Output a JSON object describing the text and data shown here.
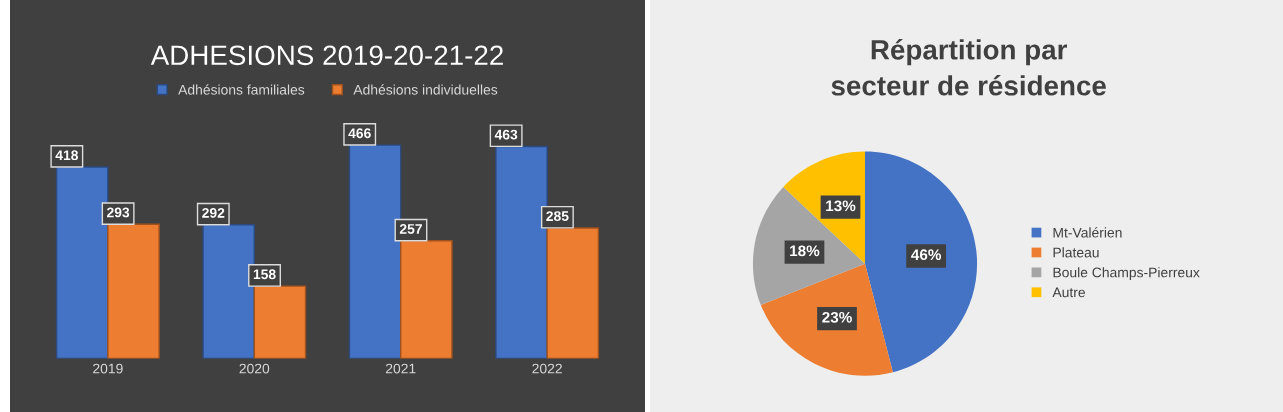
{
  "chart_data": [
    {
      "type": "bar",
      "title": "ADHESIONS 2019-20-21-22",
      "categories": [
        "2019",
        "2020",
        "2021",
        "2022"
      ],
      "series": [
        {
          "name": "Adhésions familiales",
          "color": "#4472c4",
          "values": [
            418,
            292,
            466,
            463
          ]
        },
        {
          "name": "Adhésions individuelles",
          "color": "#ed7d31",
          "values": [
            293,
            158,
            257,
            285
          ]
        }
      ],
      "data_labels": true,
      "legend": "top",
      "grid": false
    },
    {
      "type": "pie",
      "title": "Répartition par secteur de résidence",
      "categories": [
        "Mt-Valérien",
        "Plateau",
        "Boule Champs-Pierreux",
        "Autre"
      ],
      "values": [
        46,
        23,
        18,
        13
      ],
      "colors": [
        "#4472c4",
        "#ed7d31",
        "#a5a5a5",
        "#ffc000"
      ],
      "value_labels": [
        "46%",
        "23%",
        "18%",
        "13%"
      ],
      "legend": "right"
    }
  ]
}
